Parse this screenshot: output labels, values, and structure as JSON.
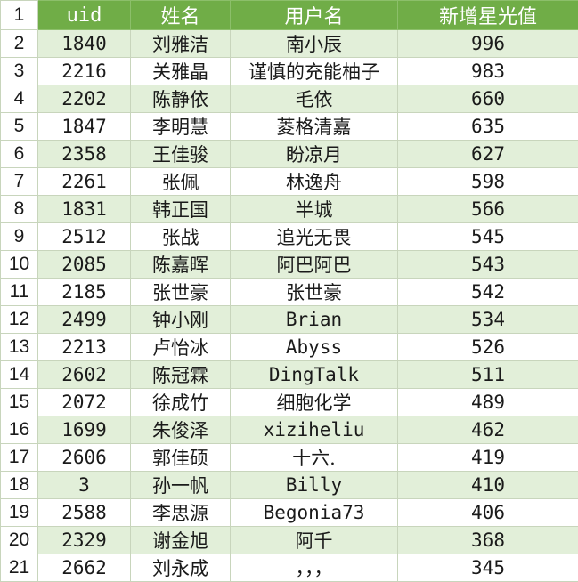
{
  "header": {
    "row_number": "1",
    "uid": "uid",
    "name": "姓名",
    "username": "用户名",
    "stars": "新增星光值"
  },
  "rows": [
    {
      "row_number": "2",
      "uid": "1840",
      "name": "刘雅洁",
      "username": "南小辰",
      "stars": "996"
    },
    {
      "row_number": "3",
      "uid": "2216",
      "name": "关雅晶",
      "username": "谨慎的充能柚子",
      "stars": "983"
    },
    {
      "row_number": "4",
      "uid": "2202",
      "name": "陈静依",
      "username": "毛依",
      "stars": "660"
    },
    {
      "row_number": "5",
      "uid": "1847",
      "name": "李明慧",
      "username": "菱格清嘉",
      "stars": "635"
    },
    {
      "row_number": "6",
      "uid": "2358",
      "name": "王佳骏",
      "username": "盼凉月",
      "stars": "627"
    },
    {
      "row_number": "7",
      "uid": "2261",
      "name": "张佩",
      "username": "林逸舟",
      "stars": "598"
    },
    {
      "row_number": "8",
      "uid": "1831",
      "name": "韩正国",
      "username": "半城",
      "stars": "566"
    },
    {
      "row_number": "9",
      "uid": "2512",
      "name": "张战",
      "username": "追光无畏",
      "stars": "545"
    },
    {
      "row_number": "10",
      "uid": "2085",
      "name": "陈嘉晖",
      "username": "阿巴阿巴",
      "stars": "543"
    },
    {
      "row_number": "11",
      "uid": "2185",
      "name": "张世豪",
      "username": "张世豪",
      "stars": "542"
    },
    {
      "row_number": "12",
      "uid": "2499",
      "name": "钟小刚",
      "username": "Brian",
      "stars": "534"
    },
    {
      "row_number": "13",
      "uid": "2213",
      "name": "卢怡冰",
      "username": "Abyss",
      "stars": "526"
    },
    {
      "row_number": "14",
      "uid": "2602",
      "name": "陈冠霖",
      "username": "DingTalk",
      "stars": "511"
    },
    {
      "row_number": "15",
      "uid": "2072",
      "name": "徐成竹",
      "username": "细胞化学",
      "stars": "489"
    },
    {
      "row_number": "16",
      "uid": "1699",
      "name": "朱俊泽",
      "username": "xiziheliu",
      "stars": "462"
    },
    {
      "row_number": "17",
      "uid": "2606",
      "name": "郭佳硕",
      "username": "十六.",
      "stars": "419"
    },
    {
      "row_number": "18",
      "uid": "3",
      "name": "孙一帆",
      "username": "Billy",
      "stars": "410"
    },
    {
      "row_number": "19",
      "uid": "2588",
      "name": "李思源",
      "username": "Begonia73",
      "stars": "406"
    },
    {
      "row_number": "20",
      "uid": "2329",
      "name": "谢金旭",
      "username": "阿千",
      "stars": "368"
    },
    {
      "row_number": "21",
      "uid": "2662",
      "name": "刘永成",
      "username": "，，，",
      "stars": "345"
    }
  ],
  "colors": {
    "header_bg": "#70ad47",
    "band_bg": "#e2efd9",
    "header_text": "#ffffff"
  }
}
